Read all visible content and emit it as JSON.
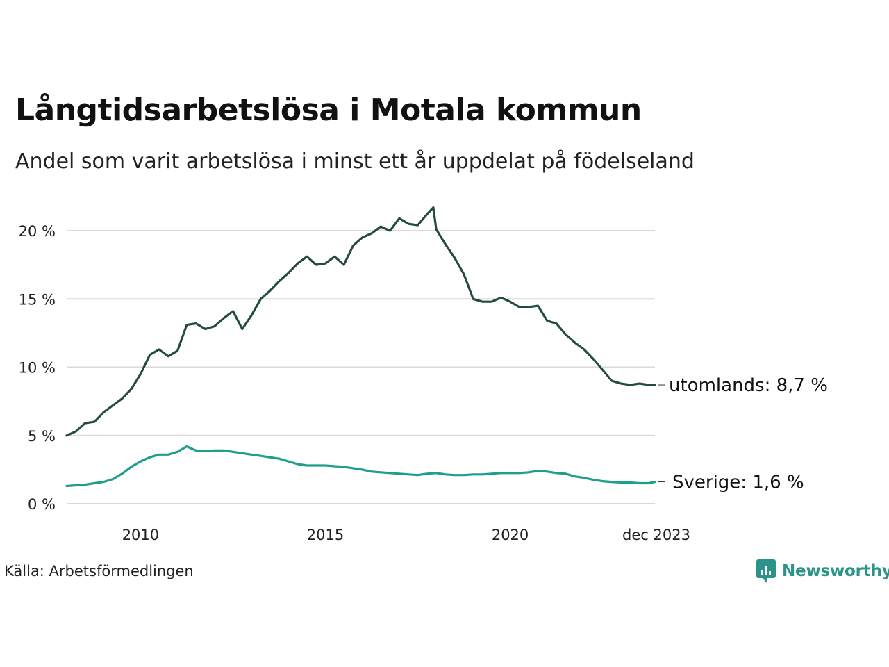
{
  "header": {
    "title": "Långtidsarbetslösa i Motala kommun",
    "subtitle": "Andel som varit arbetslösa i minst ett år uppdelat på födelseland"
  },
  "footer": {
    "source": "Källa: Arbetsförmedlingen",
    "brand": "Newsworthy"
  },
  "colors": {
    "utomlands": "#244b43",
    "sverige": "#1f9e8c",
    "grid": "#d9d9d9",
    "brand": "#2a9488"
  },
  "chart_data": {
    "type": "line",
    "title": "Långtidsarbetslösa i Motala kommun",
    "subtitle": "Andel som varit arbetslösa i minst ett år uppdelat på födelseland",
    "xlabel": "",
    "ylabel": "",
    "x_range": [
      2008.0,
      2023.917
    ],
    "ylim": [
      0,
      22
    ],
    "y_ticks": [
      0,
      5,
      10,
      15,
      20
    ],
    "y_tick_labels": [
      "0 %",
      "5 %",
      "10 %",
      "15 %",
      "20 %"
    ],
    "x_ticks": [
      2010,
      2015,
      2020,
      2023.917
    ],
    "x_tick_labels": [
      "2010",
      "2015",
      "2020",
      "dec 2023"
    ],
    "grid": true,
    "series": [
      {
        "name": "utomlands",
        "end_label": "utomlands: 8,7 %",
        "x": [
          2008.0,
          2008.25,
          2008.5,
          2008.75,
          2009.0,
          2009.25,
          2009.5,
          2009.75,
          2010.0,
          2010.25,
          2010.5,
          2010.75,
          2011.0,
          2011.25,
          2011.5,
          2011.75,
          2012.0,
          2012.25,
          2012.5,
          2012.75,
          2013.0,
          2013.25,
          2013.5,
          2013.75,
          2014.0,
          2014.25,
          2014.5,
          2014.75,
          2015.0,
          2015.25,
          2015.5,
          2015.75,
          2016.0,
          2016.25,
          2016.5,
          2016.75,
          2017.0,
          2017.25,
          2017.5,
          2017.75,
          2017.92,
          2018.0,
          2018.25,
          2018.5,
          2018.75,
          2019.0,
          2019.25,
          2019.5,
          2019.75,
          2020.0,
          2020.25,
          2020.5,
          2020.75,
          2021.0,
          2021.25,
          2021.5,
          2021.75,
          2022.0,
          2022.25,
          2022.5,
          2022.75,
          2023.0,
          2023.25,
          2023.5,
          2023.75,
          2023.917
        ],
        "values": [
          5.0,
          5.3,
          5.9,
          6.0,
          6.7,
          7.2,
          7.7,
          8.4,
          9.5,
          10.9,
          11.3,
          10.8,
          11.2,
          13.1,
          13.2,
          12.8,
          13.0,
          13.6,
          14.1,
          12.8,
          13.8,
          15.0,
          15.6,
          16.3,
          16.9,
          17.6,
          18.1,
          17.5,
          17.6,
          18.1,
          17.5,
          18.9,
          19.5,
          19.8,
          20.3,
          20.0,
          20.9,
          20.5,
          20.4,
          21.2,
          21.7,
          20.1,
          19.0,
          18.0,
          16.8,
          15.0,
          14.8,
          14.8,
          15.1,
          14.8,
          14.4,
          14.4,
          14.5,
          13.4,
          13.2,
          12.4,
          11.8,
          11.3,
          10.6,
          9.8,
          9.0,
          8.8,
          8.7,
          8.8,
          8.7,
          8.7
        ]
      },
      {
        "name": "Sverige",
        "end_label": "Sverige: 1,6 %",
        "x": [
          2008.0,
          2008.25,
          2008.5,
          2008.75,
          2009.0,
          2009.25,
          2009.5,
          2009.75,
          2010.0,
          2010.25,
          2010.5,
          2010.75,
          2011.0,
          2011.25,
          2011.5,
          2011.75,
          2012.0,
          2012.25,
          2012.5,
          2012.75,
          2013.0,
          2013.25,
          2013.5,
          2013.75,
          2014.0,
          2014.25,
          2014.5,
          2014.75,
          2015.0,
          2015.25,
          2015.5,
          2015.75,
          2016.0,
          2016.25,
          2016.5,
          2016.75,
          2017.0,
          2017.25,
          2017.5,
          2017.75,
          2018.0,
          2018.25,
          2018.5,
          2018.75,
          2019.0,
          2019.25,
          2019.5,
          2019.75,
          2020.0,
          2020.25,
          2020.5,
          2020.75,
          2021.0,
          2021.25,
          2021.5,
          2021.75,
          2022.0,
          2022.25,
          2022.5,
          2022.75,
          2023.0,
          2023.25,
          2023.5,
          2023.75,
          2023.917
        ],
        "values": [
          1.3,
          1.35,
          1.4,
          1.5,
          1.6,
          1.8,
          2.2,
          2.7,
          3.1,
          3.4,
          3.6,
          3.6,
          3.8,
          4.2,
          3.9,
          3.85,
          3.9,
          3.9,
          3.8,
          3.7,
          3.6,
          3.5,
          3.4,
          3.3,
          3.1,
          2.9,
          2.8,
          2.8,
          2.8,
          2.75,
          2.7,
          2.6,
          2.5,
          2.35,
          2.3,
          2.25,
          2.2,
          2.15,
          2.1,
          2.2,
          2.25,
          2.15,
          2.1,
          2.1,
          2.15,
          2.15,
          2.2,
          2.25,
          2.25,
          2.25,
          2.3,
          2.4,
          2.35,
          2.25,
          2.2,
          2.0,
          1.9,
          1.75,
          1.65,
          1.6,
          1.55,
          1.55,
          1.5,
          1.5,
          1.6
        ]
      }
    ]
  }
}
